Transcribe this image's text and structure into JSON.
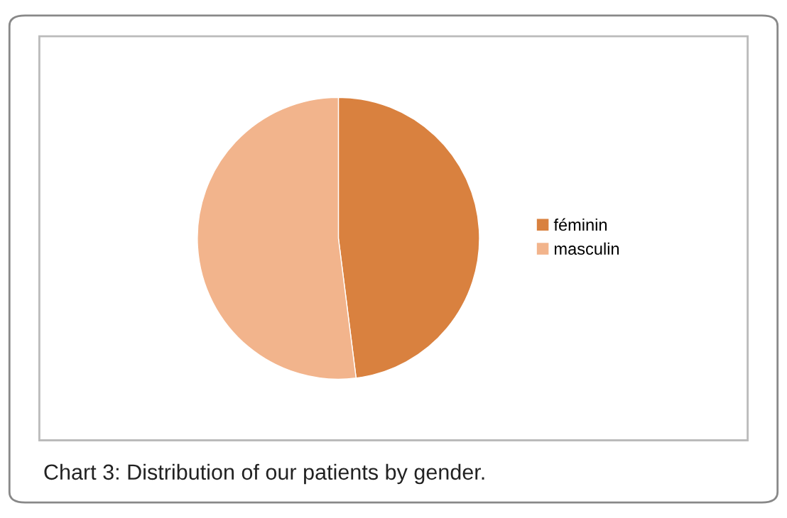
{
  "chart_data": {
    "type": "pie",
    "categories": [
      "féminin",
      "masculin"
    ],
    "values": [
      48,
      52
    ],
    "colors": [
      "#d9813f",
      "#f2b48c"
    ],
    "legend": "right",
    "annotations": [
      "Chart 3: Distribution of our patients by gender."
    ]
  }
}
